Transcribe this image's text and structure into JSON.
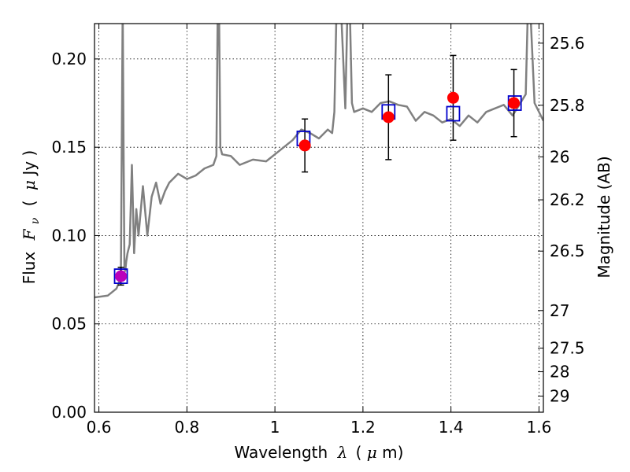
{
  "chart_data": {
    "type": "line",
    "title": "",
    "xlabel": "Wavelength",
    "xlabel_symbol": "λ",
    "xlabel_unit_open": "(",
    "xlabel_unit_mu": "μ",
    "xlabel_unit_rest": "m)",
    "ylabel": "Flux",
    "ylabel_symbol": "F",
    "ylabel_sub": "ν",
    "ylabel_unit_open": "(",
    "ylabel_unit_mu": "μ",
    "ylabel_unit_rest": "Jy )",
    "y2label": "Magnitude (AB)",
    "xlim": [
      0.59,
      1.61
    ],
    "ylim": [
      0.0,
      0.22
    ],
    "grid": true,
    "x_ticks": [
      0.6,
      0.8,
      1.0,
      1.2,
      1.4,
      1.6
    ],
    "x_tick_labels": [
      "0.6",
      "0.8",
      "1",
      "1.2",
      "1.4",
      "1.6"
    ],
    "y_ticks": [
      0.0,
      0.05,
      0.1,
      0.15,
      0.2
    ],
    "y_tick_labels": [
      "0.00",
      "0.05",
      "0.10",
      "0.15",
      "0.20"
    ],
    "y2_ticks": [
      {
        "mag": 25.6,
        "label": "25.6"
      },
      {
        "mag": 25.8,
        "label": "25.8"
      },
      {
        "mag": 26.0,
        "label": "26"
      },
      {
        "mag": 26.2,
        "label": "26.2"
      },
      {
        "mag": 26.5,
        "label": "26.5"
      },
      {
        "mag": 27.0,
        "label": "27"
      },
      {
        "mag": 27.5,
        "label": "27.5"
      },
      {
        "mag": 28.0,
        "label": "28"
      },
      {
        "mag": 29.0,
        "label": "29"
      }
    ],
    "colors": {
      "sed": "#808080",
      "observed": "#ff0000",
      "model": "#0000cc",
      "highlight": "#bb00bb",
      "error": "#000000"
    },
    "series": [
      {
        "kind": "model-sed-line",
        "x": [
          0.59,
          0.62,
          0.63,
          0.64,
          0.65,
          0.652,
          0.654,
          0.656,
          0.658,
          0.66,
          0.662,
          0.665,
          0.67,
          0.675,
          0.68,
          0.685,
          0.69,
          0.7,
          0.71,
          0.72,
          0.73,
          0.74,
          0.75,
          0.76,
          0.78,
          0.8,
          0.82,
          0.84,
          0.86,
          0.867,
          0.87,
          0.873,
          0.876,
          0.88,
          0.9,
          0.92,
          0.95,
          0.98,
          1.0,
          1.02,
          1.04,
          1.06,
          1.08,
          1.1,
          1.12,
          1.13,
          1.135,
          1.14,
          1.15,
          1.16,
          1.165,
          1.17,
          1.175,
          1.18,
          1.2,
          1.22,
          1.24,
          1.26,
          1.28,
          1.3,
          1.32,
          1.34,
          1.36,
          1.38,
          1.4,
          1.42,
          1.44,
          1.46,
          1.48,
          1.5,
          1.52,
          1.54,
          1.56,
          1.57,
          1.575,
          1.58,
          1.59,
          1.61
        ],
        "y": [
          0.065,
          0.066,
          0.068,
          0.07,
          0.076,
          0.15,
          0.23,
          0.15,
          0.082,
          0.08,
          0.085,
          0.09,
          0.095,
          0.14,
          0.09,
          0.115,
          0.1,
          0.128,
          0.1,
          0.122,
          0.13,
          0.118,
          0.125,
          0.13,
          0.135,
          0.132,
          0.134,
          0.138,
          0.14,
          0.145,
          0.23,
          0.23,
          0.15,
          0.146,
          0.145,
          0.14,
          0.143,
          0.142,
          0.146,
          0.15,
          0.154,
          0.16,
          0.158,
          0.155,
          0.16,
          0.158,
          0.17,
          0.23,
          0.23,
          0.172,
          0.23,
          0.23,
          0.175,
          0.17,
          0.172,
          0.17,
          0.175,
          0.176,
          0.174,
          0.173,
          0.165,
          0.17,
          0.168,
          0.164,
          0.166,
          0.162,
          0.168,
          0.164,
          0.17,
          0.172,
          0.174,
          0.168,
          0.176,
          0.18,
          0.23,
          0.23,
          0.175,
          0.165
        ]
      },
      {
        "kind": "model-photometry",
        "x": [
          0.65,
          1.065,
          1.258,
          1.405,
          1.545
        ],
        "y": [
          0.077,
          0.155,
          0.17,
          0.169,
          0.175
        ]
      },
      {
        "kind": "observed-photometry",
        "x": [
          0.65,
          1.068,
          1.258,
          1.405,
          1.543
        ],
        "y": [
          0.077,
          0.151,
          0.167,
          0.178,
          0.175
        ],
        "yerr": [
          0.005,
          0.015,
          0.024,
          0.024,
          0.019
        ]
      }
    ]
  }
}
